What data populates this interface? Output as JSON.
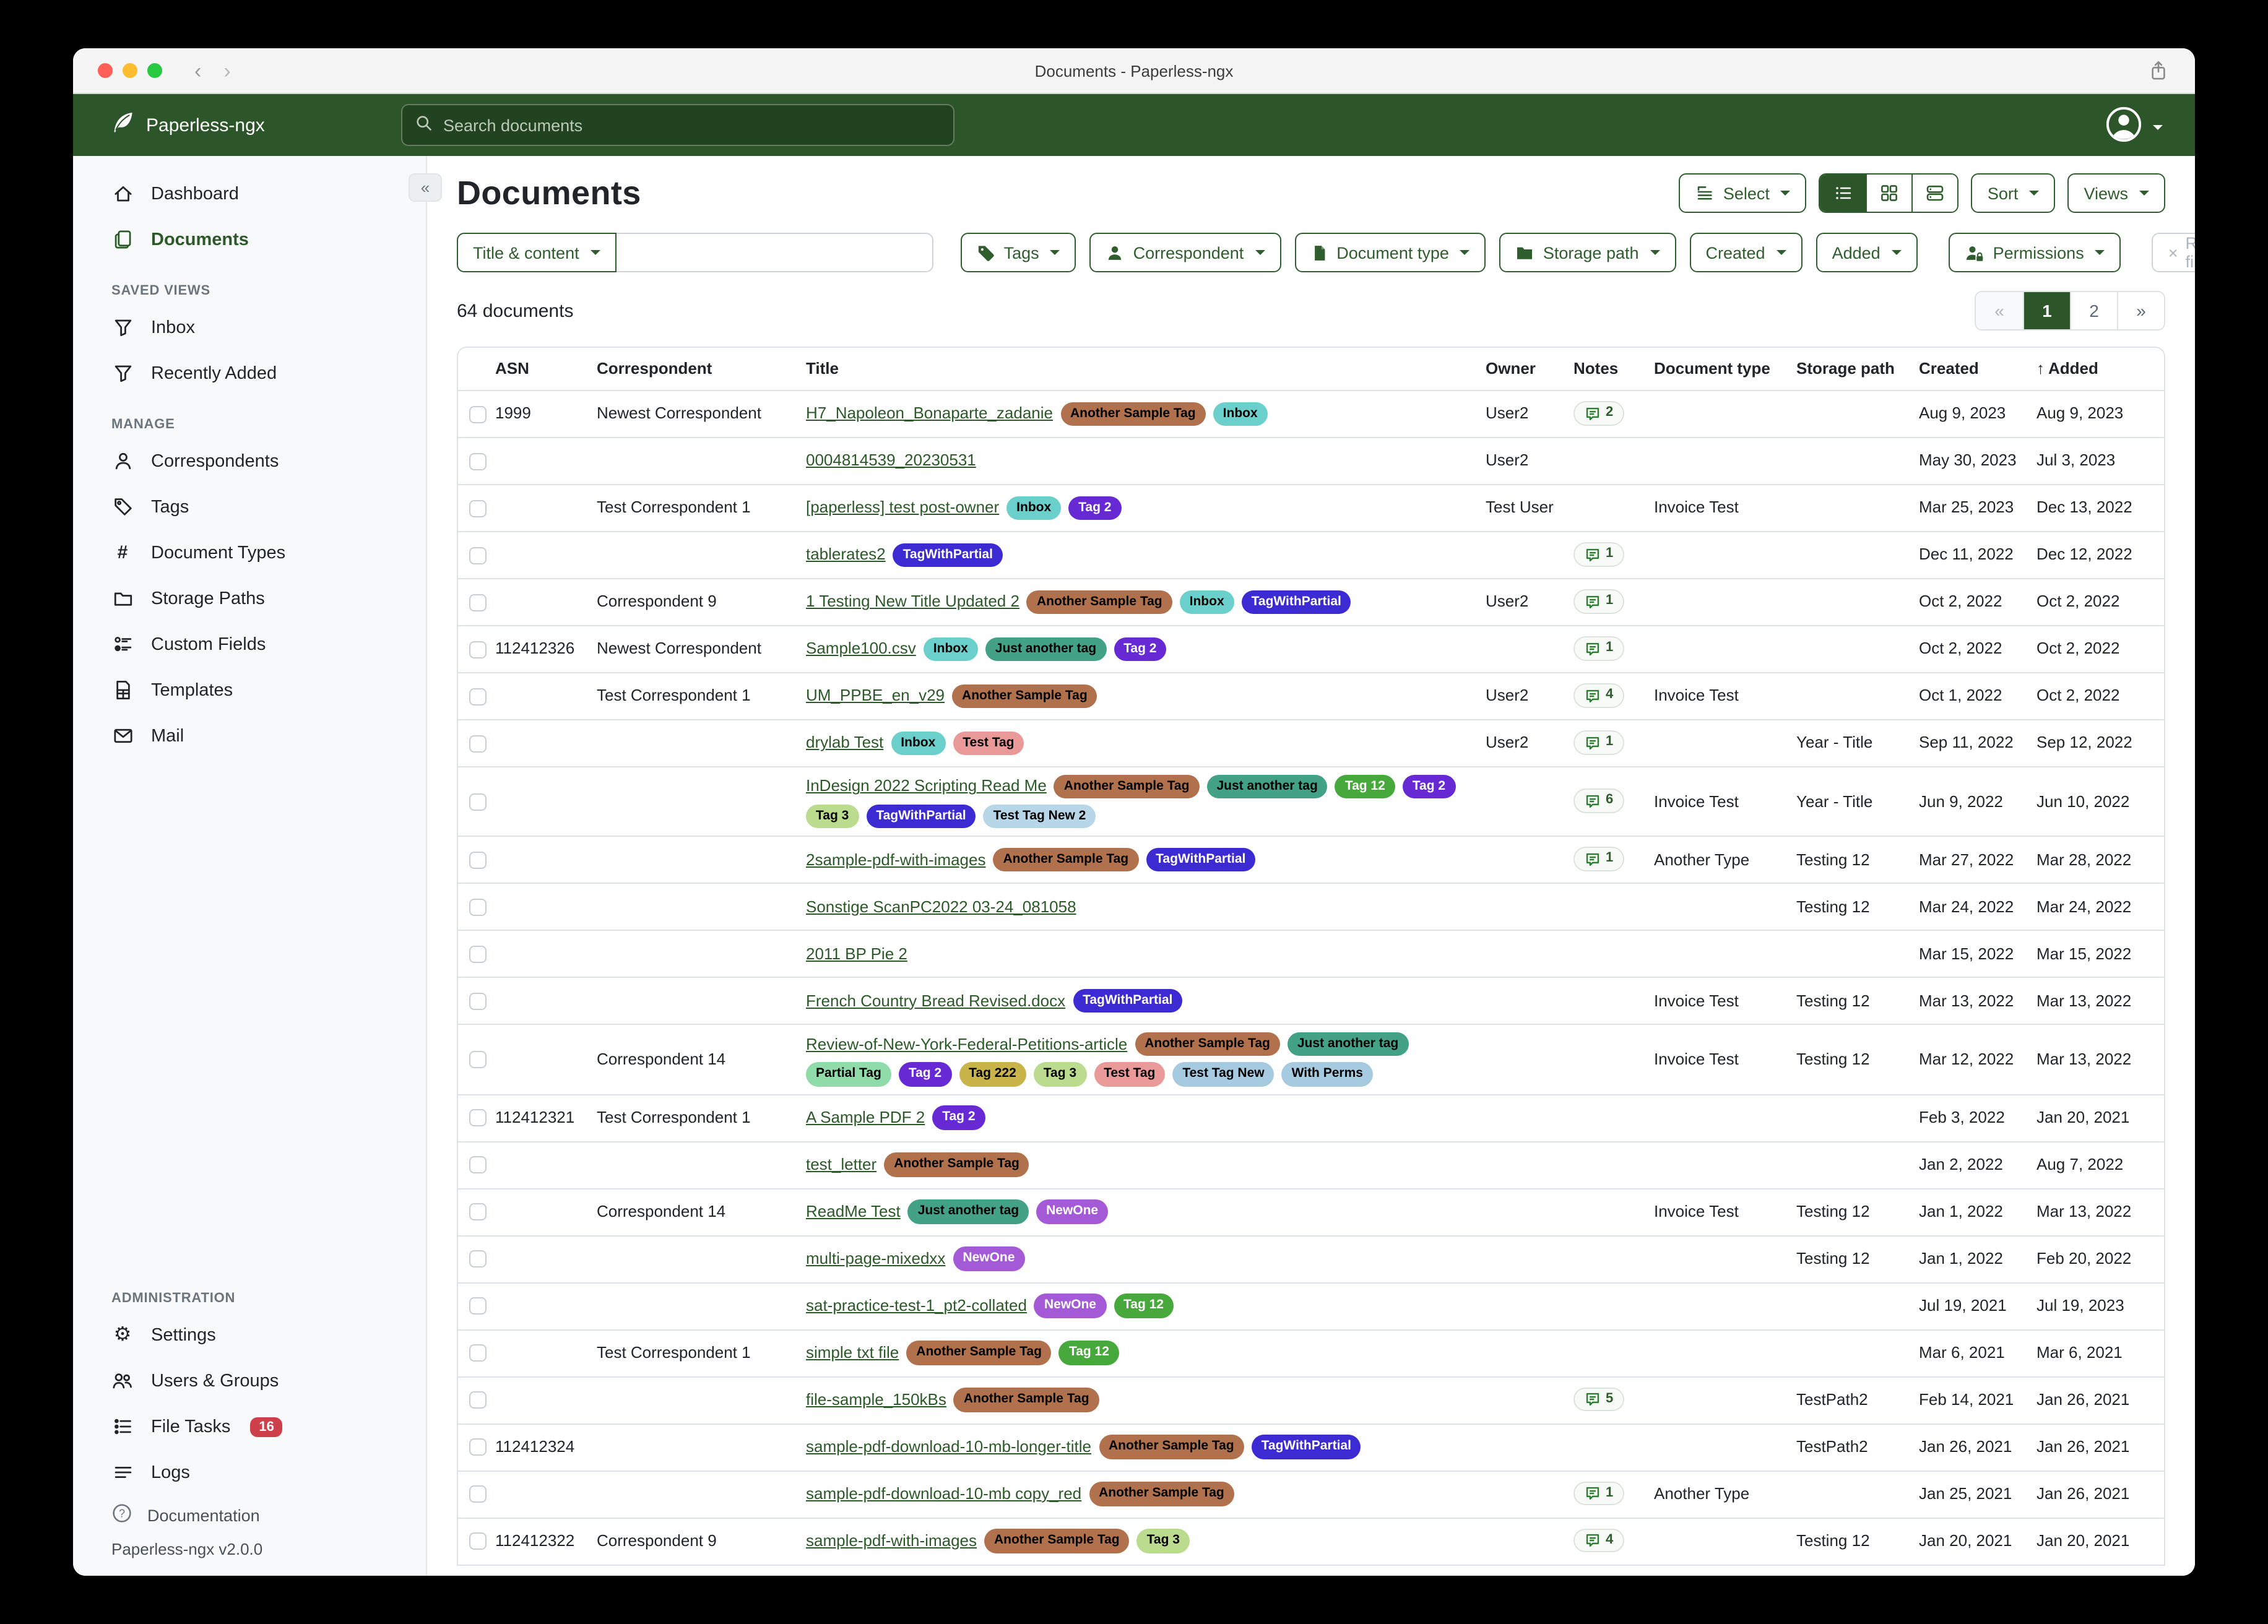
{
  "window": {
    "title": "Documents - Paperless-ngx"
  },
  "header": {
    "brand": "Paperless-ngx",
    "search_placeholder": "Search documents",
    "search_value": ""
  },
  "sidebar": {
    "primary": [
      {
        "label": "Dashboard",
        "icon": "house-icon",
        "active": false
      },
      {
        "label": "Documents",
        "icon": "files-icon",
        "active": true
      }
    ],
    "sections": [
      {
        "title": "SAVED VIEWS",
        "items": [
          {
            "label": "Inbox",
            "icon": "funnel-icon"
          },
          {
            "label": "Recently Added",
            "icon": "funnel-icon"
          }
        ]
      },
      {
        "title": "MANAGE",
        "items": [
          {
            "label": "Correspondents",
            "icon": "person-icon"
          },
          {
            "label": "Tags",
            "icon": "tag-icon"
          },
          {
            "label": "Document Types",
            "icon": "hash-icon"
          },
          {
            "label": "Storage Paths",
            "icon": "folder-icon"
          },
          {
            "label": "Custom Fields",
            "icon": "ui-radios-icon"
          },
          {
            "label": "Templates",
            "icon": "file-ruled-icon"
          },
          {
            "label": "Mail",
            "icon": "envelope-icon"
          }
        ]
      }
    ],
    "admin": {
      "title": "ADMINISTRATION",
      "items": [
        {
          "label": "Settings",
          "icon": "gear-icon"
        },
        {
          "label": "Users & Groups",
          "icon": "people-icon"
        },
        {
          "label": "File Tasks",
          "icon": "list-task-icon",
          "badge": "16"
        },
        {
          "label": "Logs",
          "icon": "text-left-icon"
        }
      ]
    },
    "footer": {
      "documentation": "Documentation",
      "version": "Paperless-ngx v2.0.0"
    }
  },
  "page": {
    "title": "Documents",
    "count_text": "64 documents"
  },
  "toolbar": {
    "select": "Select",
    "sort": "Sort",
    "views": "Views"
  },
  "filters": {
    "title_content": "Title & content",
    "search_value": "",
    "tags": "Tags",
    "correspondent": "Correspondent",
    "document_type": "Document type",
    "storage_path": "Storage path",
    "created": "Created",
    "added": "Added",
    "permissions": "Permissions",
    "reset": "Reset filters"
  },
  "pagination": {
    "prev": "«",
    "page1": "1",
    "page2": "2",
    "next": "»",
    "active": "1"
  },
  "table": {
    "headers": {
      "asn": "ASN",
      "correspondent": "Correspondent",
      "title": "Title",
      "owner": "Owner",
      "notes": "Notes",
      "type": "Document type",
      "path": "Storage path",
      "created": "Created",
      "added": "Added",
      "sorted_by": "added",
      "sort_arrow": "↑"
    },
    "tag_colors": {
      "Another Sample Tag": {
        "bg": "#b1714c",
        "fg": "#000000"
      },
      "Inbox": {
        "bg": "#6bd0cb",
        "fg": "#000000"
      },
      "Tag 2": {
        "bg": "#6729d3",
        "fg": "#ffffff"
      },
      "TagWithPartial": {
        "bg": "#3c2bd3",
        "fg": "#ffffff"
      },
      "Just another tag": {
        "bg": "#43a185",
        "fg": "#000000"
      },
      "Test Tag": {
        "bg": "#ea9999",
        "fg": "#000000"
      },
      "Tag 12": {
        "bg": "#47a83b",
        "fg": "#ffffff"
      },
      "Tag 3": {
        "bg": "#bbdc8e",
        "fg": "#000000"
      },
      "Test Tag New 2": {
        "bg": "#b7d7e8",
        "fg": "#000000"
      },
      "Test Tag New": {
        "bg": "#a6cbe0",
        "fg": "#000000"
      },
      "With Perms": {
        "bg": "#a6cbe0",
        "fg": "#000000"
      },
      "Partial Tag": {
        "bg": "#90dbaa",
        "fg": "#000000"
      },
      "Tag 222": {
        "bg": "#c9b44a",
        "fg": "#000000"
      },
      "NewOne": {
        "bg": "#a45ad6",
        "fg": "#ffffff"
      }
    },
    "rows": [
      {
        "asn": "1999",
        "correspondent": "Newest Correspondent",
        "title": "H7_Napoleon_Bonaparte_zadanie",
        "tags": [
          "Another Sample Tag",
          "Inbox"
        ],
        "owner": "User2",
        "notes": "2",
        "type": "",
        "path": "",
        "created": "Aug 9, 2023",
        "added": "Aug 9, 2023"
      },
      {
        "asn": "",
        "correspondent": "",
        "title": "0004814539_20230531",
        "tags": [],
        "owner": "User2",
        "notes": "",
        "type": "",
        "path": "",
        "created": "May 30, 2023",
        "added": "Jul 3, 2023"
      },
      {
        "asn": "",
        "correspondent": "Test Correspondent 1",
        "title": "[paperless] test post-owner",
        "tags": [
          "Inbox",
          "Tag 2"
        ],
        "owner": "Test User",
        "notes": "",
        "type": "Invoice Test",
        "path": "",
        "created": "Mar 25, 2023",
        "added": "Dec 13, 2022"
      },
      {
        "asn": "",
        "correspondent": "",
        "title": "tablerates2",
        "tags": [
          "TagWithPartial"
        ],
        "owner": "",
        "notes": "1",
        "type": "",
        "path": "",
        "created": "Dec 11, 2022",
        "added": "Dec 12, 2022"
      },
      {
        "asn": "",
        "correspondent": "Correspondent 9",
        "title": "1 Testing New Title Updated 2",
        "tags": [
          "Another Sample Tag",
          "Inbox",
          "TagWithPartial"
        ],
        "owner": "User2",
        "notes": "1",
        "type": "",
        "path": "",
        "created": "Oct 2, 2022",
        "added": "Oct 2, 2022"
      },
      {
        "asn": "112412326",
        "correspondent": "Newest Correspondent",
        "title": "Sample100.csv",
        "tags": [
          "Inbox",
          "Just another tag",
          "Tag 2"
        ],
        "owner": "",
        "notes": "1",
        "type": "",
        "path": "",
        "created": "Oct 2, 2022",
        "added": "Oct 2, 2022"
      },
      {
        "asn": "",
        "correspondent": "Test Correspondent 1",
        "title": "UM_PPBE_en_v29",
        "tags": [
          "Another Sample Tag"
        ],
        "owner": "User2",
        "notes": "4",
        "type": "Invoice Test",
        "path": "",
        "created": "Oct 1, 2022",
        "added": "Oct 2, 2022"
      },
      {
        "asn": "",
        "correspondent": "",
        "title": "drylab Test",
        "tags": [
          "Inbox",
          "Test Tag"
        ],
        "owner": "User2",
        "notes": "1",
        "type": "",
        "path": "Year - Title",
        "created": "Sep 11, 2022",
        "added": "Sep 12, 2022"
      },
      {
        "asn": "",
        "correspondent": "",
        "title": "InDesign 2022 Scripting Read Me",
        "tags": [
          "Another Sample Tag",
          "Just another tag",
          "Tag 12",
          "Tag 2",
          "Tag 3",
          "TagWithPartial",
          "Test Tag New 2"
        ],
        "owner": "",
        "notes": "6",
        "type": "Invoice Test",
        "path": "Year - Title",
        "created": "Jun 9, 2022",
        "added": "Jun 10, 2022"
      },
      {
        "asn": "",
        "correspondent": "",
        "title": "2sample-pdf-with-images",
        "tags": [
          "Another Sample Tag",
          "TagWithPartial"
        ],
        "owner": "",
        "notes": "1",
        "type": "Another Type",
        "path": "Testing 12",
        "created": "Mar 27, 2022",
        "added": "Mar 28, 2022"
      },
      {
        "asn": "",
        "correspondent": "",
        "title": "Sonstige ScanPC2022 03-24_081058",
        "tags": [],
        "owner": "",
        "notes": "",
        "type": "",
        "path": "Testing 12",
        "created": "Mar 24, 2022",
        "added": "Mar 24, 2022"
      },
      {
        "asn": "",
        "correspondent": "",
        "title": "2011 BP Pie 2",
        "tags": [],
        "owner": "",
        "notes": "",
        "type": "",
        "path": "",
        "created": "Mar 15, 2022",
        "added": "Mar 15, 2022"
      },
      {
        "asn": "",
        "correspondent": "",
        "title": "French Country Bread Revised.docx",
        "tags": [
          "TagWithPartial"
        ],
        "owner": "",
        "notes": "",
        "type": "Invoice Test",
        "path": "Testing 12",
        "created": "Mar 13, 2022",
        "added": "Mar 13, 2022"
      },
      {
        "asn": "",
        "correspondent": "Correspondent 14",
        "title": "Review-of-New-York-Federal-Petitions-article",
        "tags": [
          "Another Sample Tag",
          "Just another tag",
          "Partial Tag",
          "Tag 2",
          "Tag 222",
          "Tag 3",
          "Test Tag",
          "Test Tag New",
          "With Perms"
        ],
        "owner": "",
        "notes": "",
        "type": "Invoice Test",
        "path": "Testing 12",
        "created": "Mar 12, 2022",
        "added": "Mar 13, 2022"
      },
      {
        "asn": "112412321",
        "correspondent": "Test Correspondent 1",
        "title": "A Sample PDF 2",
        "tags": [
          "Tag 2"
        ],
        "owner": "",
        "notes": "",
        "type": "",
        "path": "",
        "created": "Feb 3, 2022",
        "added": "Jan 20, 2021"
      },
      {
        "asn": "",
        "correspondent": "",
        "title": "test_letter",
        "tags": [
          "Another Sample Tag"
        ],
        "owner": "",
        "notes": "",
        "type": "",
        "path": "",
        "created": "Jan 2, 2022",
        "added": "Aug 7, 2022"
      },
      {
        "asn": "",
        "correspondent": "Correspondent 14",
        "title": "ReadMe Test",
        "tags": [
          "Just another tag",
          "NewOne"
        ],
        "owner": "",
        "notes": "",
        "type": "Invoice Test",
        "path": "Testing 12",
        "created": "Jan 1, 2022",
        "added": "Mar 13, 2022"
      },
      {
        "asn": "",
        "correspondent": "",
        "title": "multi-page-mixedxx",
        "tags": [
          "NewOne"
        ],
        "owner": "",
        "notes": "",
        "type": "",
        "path": "Testing 12",
        "created": "Jan 1, 2022",
        "added": "Feb 20, 2022"
      },
      {
        "asn": "",
        "correspondent": "",
        "title": "sat-practice-test-1_pt2-collated",
        "tags": [
          "NewOne",
          "Tag 12"
        ],
        "owner": "",
        "notes": "",
        "type": "",
        "path": "",
        "created": "Jul 19, 2021",
        "added": "Jul 19, 2023"
      },
      {
        "asn": "",
        "correspondent": "Test Correspondent 1",
        "title": "simple txt file",
        "tags": [
          "Another Sample Tag",
          "Tag 12"
        ],
        "owner": "",
        "notes": "",
        "type": "",
        "path": "",
        "created": "Mar 6, 2021",
        "added": "Mar 6, 2021"
      },
      {
        "asn": "",
        "correspondent": "",
        "title": "file-sample_150kBs",
        "tags": [
          "Another Sample Tag"
        ],
        "owner": "",
        "notes": "5",
        "type": "",
        "path": "TestPath2",
        "created": "Feb 14, 2021",
        "added": "Jan 26, 2021"
      },
      {
        "asn": "112412324",
        "correspondent": "",
        "title": "sample-pdf-download-10-mb-longer-title",
        "tags": [
          "Another Sample Tag",
          "TagWithPartial"
        ],
        "owner": "",
        "notes": "",
        "type": "",
        "path": "TestPath2",
        "created": "Jan 26, 2021",
        "added": "Jan 26, 2021"
      },
      {
        "asn": "",
        "correspondent": "",
        "title": "sample-pdf-download-10-mb copy_red",
        "tags": [
          "Another Sample Tag"
        ],
        "owner": "",
        "notes": "1",
        "type": "Another Type",
        "path": "",
        "created": "Jan 25, 2021",
        "added": "Jan 26, 2021"
      },
      {
        "asn": "112412322",
        "correspondent": "Correspondent 9",
        "title": "sample-pdf-with-images",
        "tags": [
          "Another Sample Tag",
          "Tag 3"
        ],
        "owner": "",
        "notes": "4",
        "type": "",
        "path": "Testing 12",
        "created": "Jan 20, 2021",
        "added": "Jan 20, 2021"
      }
    ]
  }
}
